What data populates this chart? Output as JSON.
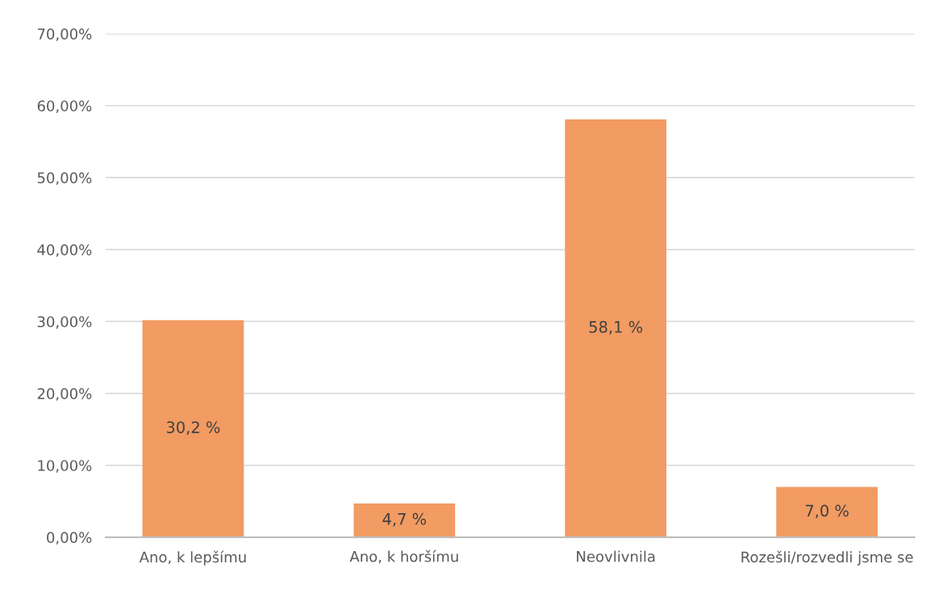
{
  "chart_data": {
    "type": "bar",
    "categories": [
      "Ano, k lepšímu",
      "Ano, k horšímu",
      "Neovlivnila",
      "Rozešli/rozvedli jsme se"
    ],
    "values": [
      30.2,
      4.7,
      58.1,
      7.0
    ],
    "color": "#f29b62",
    "value_labels": [
      "30,2 %",
      "4,7 %",
      "58,1 %",
      "7,0 %"
    ],
    "ylim": [
      0,
      70
    ],
    "yticks": [
      {
        "value": 0,
        "label": "0,00%"
      },
      {
        "value": 10,
        "label": "10,00%"
      },
      {
        "value": 20,
        "label": "20,00%"
      },
      {
        "value": 30,
        "label": "30,00%"
      },
      {
        "value": 40,
        "label": "40,00%"
      },
      {
        "value": 50,
        "label": "50,00%"
      },
      {
        "value": 60,
        "label": "60,00%"
      },
      {
        "value": 70,
        "label": "70,00%"
      }
    ],
    "grid": "y",
    "legend": false
  }
}
